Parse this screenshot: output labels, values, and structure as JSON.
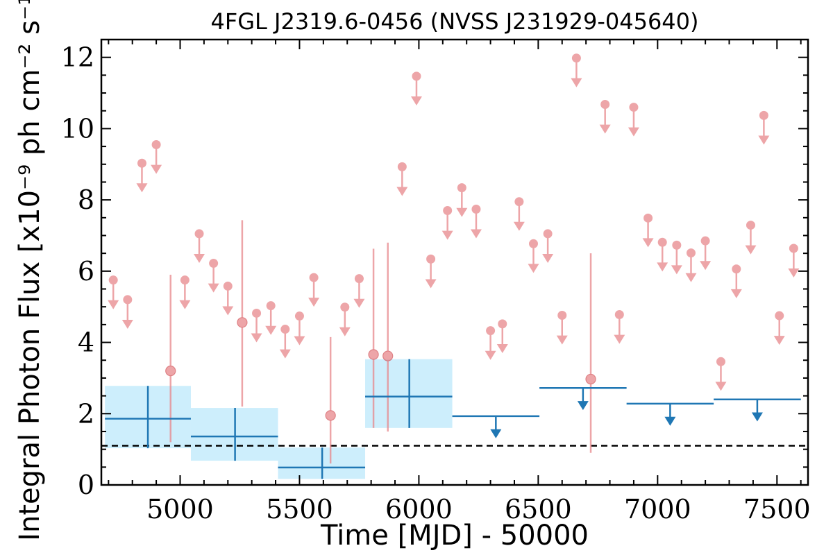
{
  "chart_data": {
    "type": "scatter",
    "title": "4FGL J2319.6-0456 (NVSS J231929-045640)",
    "xlabel": "Time [MJD] - 50000",
    "ylabel": "Integral Photon Flux [x10⁻⁹ ph cm⁻² s⁻¹]",
    "xlim": [
      4670,
      7630
    ],
    "ylim": [
      0,
      12.5
    ],
    "xticks": [
      5000,
      5500,
      6000,
      6500,
      7000,
      7500
    ],
    "yticks": [
      0,
      2,
      4,
      6,
      8,
      10,
      12
    ],
    "grid": false,
    "legend": "none",
    "reference_line": {
      "y": 1.1,
      "style": "dashed"
    },
    "colors": {
      "short_bins": "#e8878b",
      "long_bins": "#1f77b4",
      "long_bins_band": "#cdeefc",
      "reference_line": "#000000"
    },
    "series": [
      {
        "marker": "circle",
        "upper_limits": [
          {
            "x": 4720,
            "y": 5.75
          },
          {
            "x": 4780,
            "y": 5.2
          },
          {
            "x": 4840,
            "y": 9.03
          },
          {
            "x": 4900,
            "y": 9.55
          },
          {
            "x": 5020,
            "y": 5.75
          },
          {
            "x": 5080,
            "y": 7.05
          },
          {
            "x": 5140,
            "y": 6.22
          },
          {
            "x": 5200,
            "y": 5.58
          },
          {
            "x": 5320,
            "y": 4.82
          },
          {
            "x": 5380,
            "y": 5.03
          },
          {
            "x": 5440,
            "y": 4.37
          },
          {
            "x": 5500,
            "y": 4.74
          },
          {
            "x": 5560,
            "y": 5.82
          },
          {
            "x": 5690,
            "y": 4.99
          },
          {
            "x": 5750,
            "y": 5.79
          },
          {
            "x": 5930,
            "y": 8.93
          },
          {
            "x": 5990,
            "y": 11.47
          },
          {
            "x": 6050,
            "y": 6.34
          },
          {
            "x": 6120,
            "y": 7.7
          },
          {
            "x": 6180,
            "y": 8.34
          },
          {
            "x": 6240,
            "y": 7.74
          },
          {
            "x": 6300,
            "y": 4.33
          },
          {
            "x": 6350,
            "y": 4.52
          },
          {
            "x": 6420,
            "y": 7.95
          },
          {
            "x": 6480,
            "y": 6.77
          },
          {
            "x": 6540,
            "y": 7.05
          },
          {
            "x": 6600,
            "y": 4.76
          },
          {
            "x": 6660,
            "y": 11.98
          },
          {
            "x": 6780,
            "y": 10.68
          },
          {
            "x": 6840,
            "y": 4.78
          },
          {
            "x": 6900,
            "y": 10.6
          },
          {
            "x": 6960,
            "y": 7.49
          },
          {
            "x": 7020,
            "y": 6.81
          },
          {
            "x": 7080,
            "y": 6.73
          },
          {
            "x": 7140,
            "y": 6.51
          },
          {
            "x": 7200,
            "y": 6.85
          },
          {
            "x": 7265,
            "y": 3.46
          },
          {
            "x": 7330,
            "y": 6.06
          },
          {
            "x": 7390,
            "y": 7.29
          },
          {
            "x": 7445,
            "y": 10.37
          },
          {
            "x": 7510,
            "y": 4.75
          },
          {
            "x": 7570,
            "y": 6.64
          }
        ],
        "detections": [
          {
            "x": 4960,
            "y": 3.2,
            "ylow": 1.2,
            "yhigh": 5.9
          },
          {
            "x": 5260,
            "y": 4.56,
            "ylow": 2.2,
            "yhigh": 7.43
          },
          {
            "x": 5630,
            "y": 1.95,
            "ylow": 0.6,
            "yhigh": 4.15
          },
          {
            "x": 5810,
            "y": 3.66,
            "ylow": 1.6,
            "yhigh": 6.63
          },
          {
            "x": 5870,
            "y": 3.62,
            "ylow": 1.5,
            "yhigh": 6.8
          },
          {
            "x": 6720,
            "y": 2.97,
            "ylow": 0.9,
            "yhigh": 6.5
          }
        ]
      },
      {
        "marker": "crosshair",
        "detections": [
          {
            "x": 4865,
            "xlow": 4685,
            "xhigh": 5045,
            "y": 1.86,
            "ylow": 1.03,
            "yhigh": 2.78
          },
          {
            "x": 5230,
            "xlow": 5045,
            "xhigh": 5410,
            "y": 1.36,
            "ylow": 0.68,
            "yhigh": 2.16
          },
          {
            "x": 5595,
            "xlow": 5410,
            "xhigh": 5775,
            "y": 0.49,
            "ylow": 0.17,
            "yhigh": 1.05
          },
          {
            "x": 5960,
            "xlow": 5775,
            "xhigh": 6140,
            "y": 2.48,
            "ylow": 1.6,
            "yhigh": 3.53
          }
        ],
        "upper_limits": [
          {
            "xlow": 6140,
            "xhigh": 6505,
            "y": 1.93
          },
          {
            "xlow": 6505,
            "xhigh": 6870,
            "y": 2.72
          },
          {
            "xlow": 6870,
            "xhigh": 7235,
            "y": 2.28
          },
          {
            "xlow": 7235,
            "xhigh": 7600,
            "y": 2.4
          }
        ]
      }
    ]
  }
}
